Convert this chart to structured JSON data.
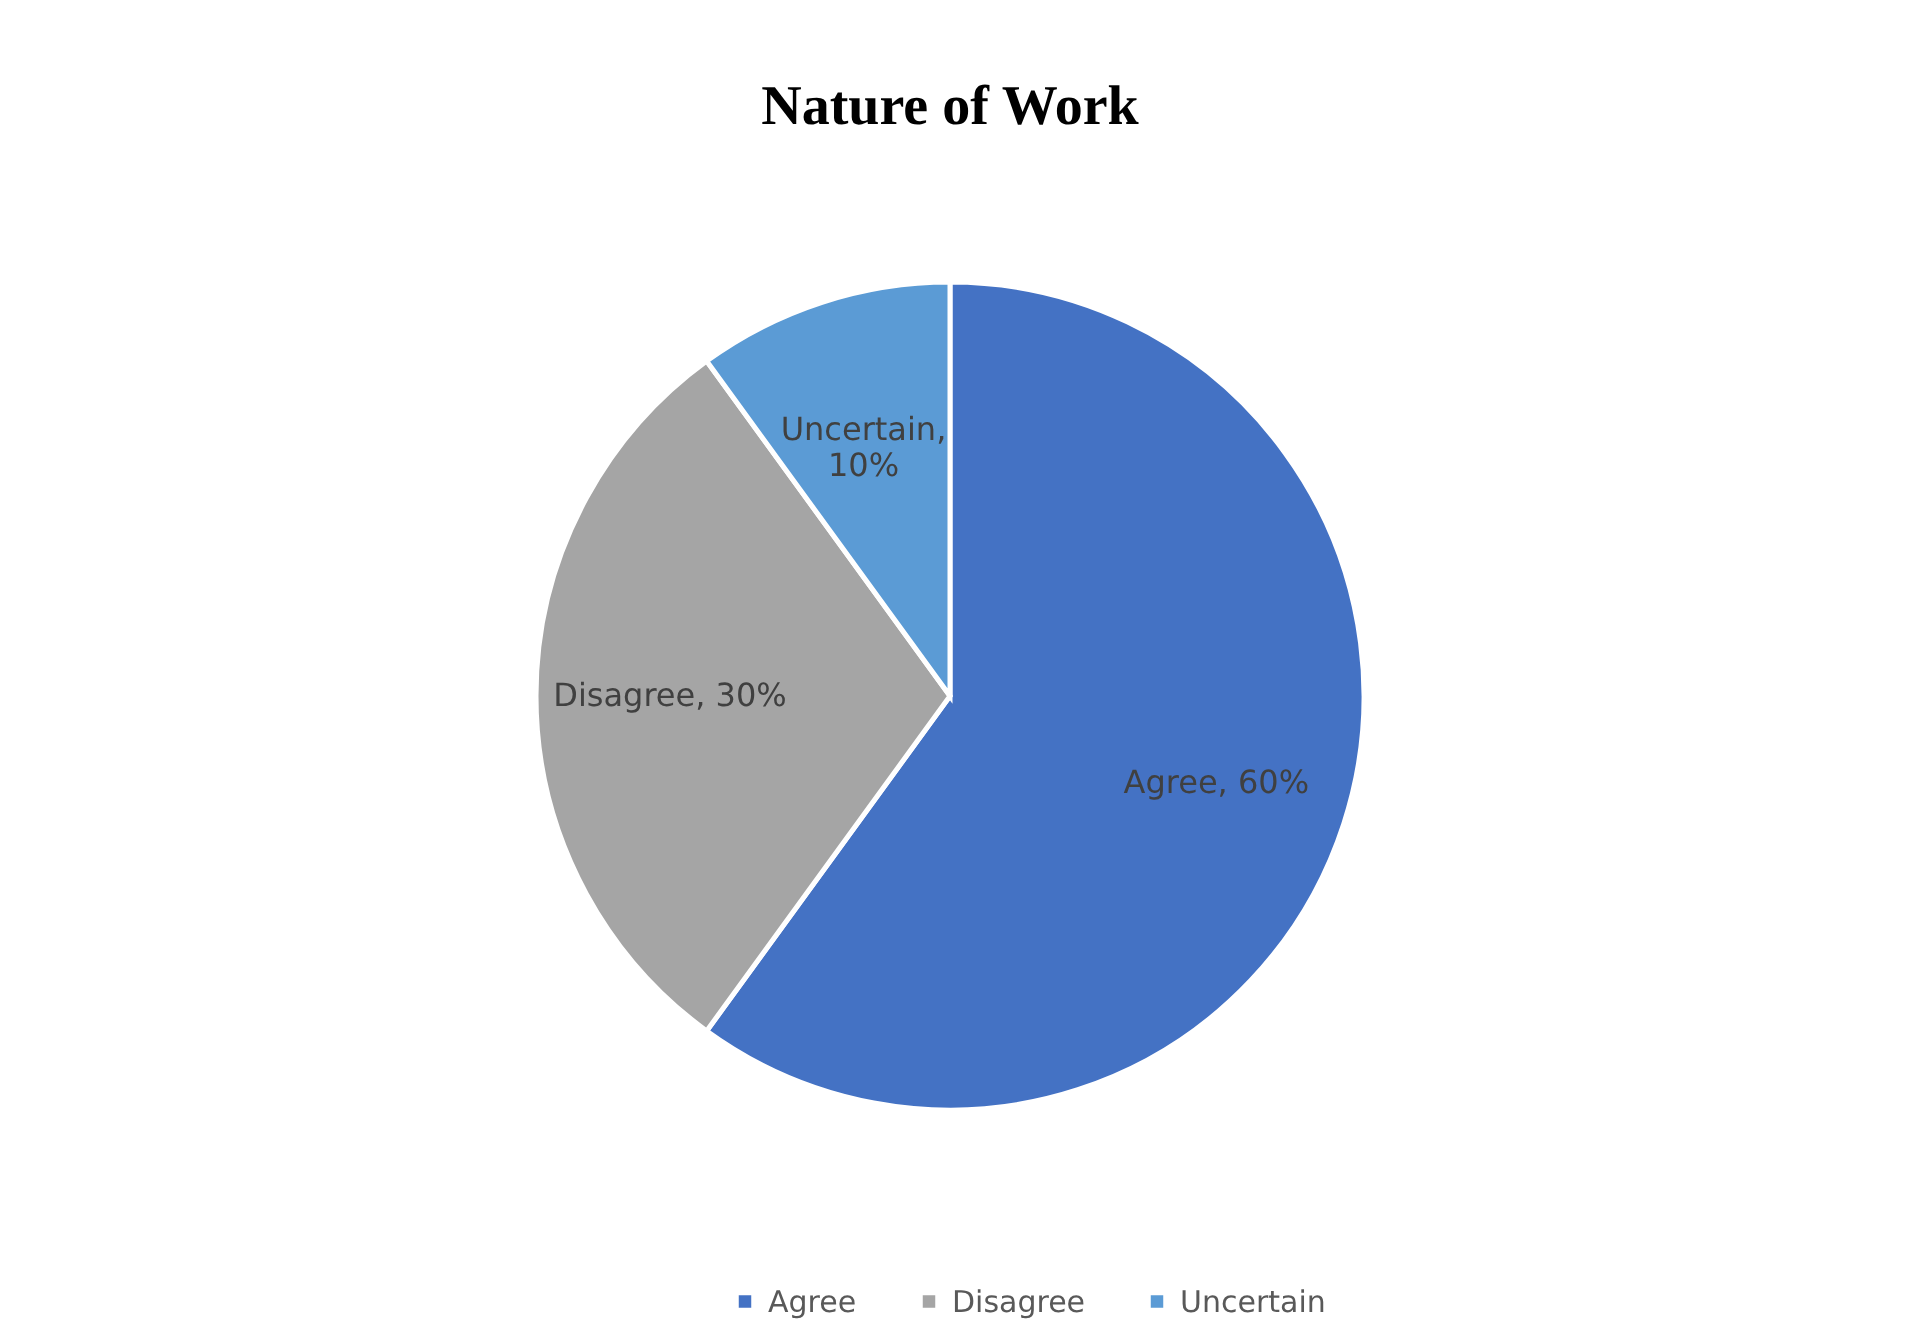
{
  "chart_data": {
    "type": "pie",
    "title": "Nature of Work",
    "categories": [
      "Agree",
      "Disagree",
      "Uncertain"
    ],
    "values": [
      60,
      30,
      10
    ],
    "colors": [
      "#4472c4",
      "#a5a5a5",
      "#5b9bd5"
    ],
    "value_labels": [
      "Agree, 60%",
      "Disagree, 30%",
      "Uncertain,\n10%"
    ],
    "legend": "bottom"
  }
}
